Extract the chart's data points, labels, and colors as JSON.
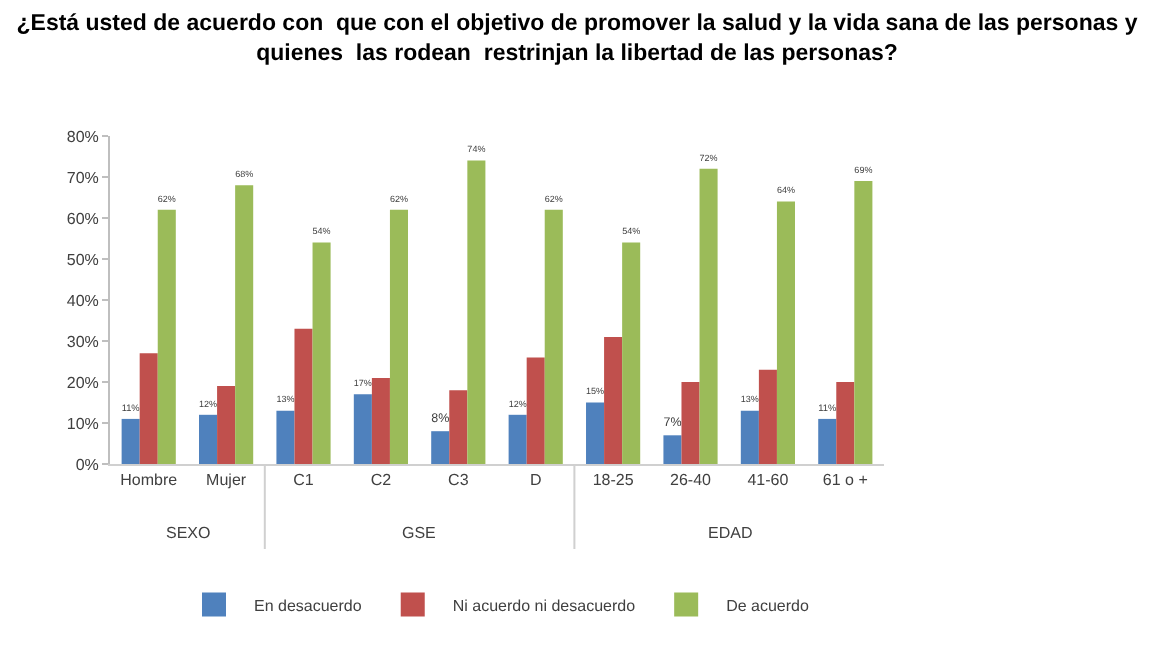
{
  "chart_data": {
    "type": "bar",
    "title": "¿Está usted de acuerdo con  que con el objetivo de promover la salud y la vida sana de las personas y\nquienes  las rodean  restrinjan la libertad de las personas?",
    "categories": [
      "Hombre",
      "Mujer",
      "C1",
      "C2",
      "C3",
      "D",
      "18-25",
      "26-40",
      "41-60",
      "61 o +"
    ],
    "series": [
      {
        "name": "En desacuerdo",
        "color": "#4f81bd",
        "values": [
          11,
          12,
          13,
          17,
          8,
          12,
          15,
          7,
          13,
          11
        ],
        "value_labels": [
          "11%",
          "12%",
          "13%",
          "17%",
          "8%",
          "12%",
          "15%",
          "7%",
          "13%",
          "11%"
        ]
      },
      {
        "name": "Ni acuerdo ni desacuerdo",
        "color": "#c0504d",
        "values": [
          27,
          19,
          33,
          21,
          18,
          26,
          31,
          20,
          23,
          20
        ]
      },
      {
        "name": "De acuerdo",
        "color": "#9bbb59",
        "values": [
          62,
          68,
          54,
          62,
          74,
          62,
          54,
          72,
          64,
          69
        ],
        "value_labels": [
          "62%",
          "68%",
          "54%",
          "62%",
          "74%",
          "62%",
          "54%",
          "72%",
          "64%",
          "69%"
        ]
      }
    ],
    "ylim": [
      0,
      80
    ],
    "yticks": [
      {
        "value": 0,
        "label": "0%"
      },
      {
        "value": 10,
        "label": "10%"
      },
      {
        "value": 20,
        "label": "20%"
      },
      {
        "value": 30,
        "label": "30%"
      },
      {
        "value": 40,
        "label": "40%"
      },
      {
        "value": 50,
        "label": "50%"
      },
      {
        "value": 60,
        "label": "60%"
      },
      {
        "value": 70,
        "label": "70%"
      },
      {
        "value": 80,
        "label": "80%"
      }
    ],
    "annotations": [
      "SEXO",
      "GSE",
      "EDAD"
    ],
    "legend": "bottom"
  }
}
